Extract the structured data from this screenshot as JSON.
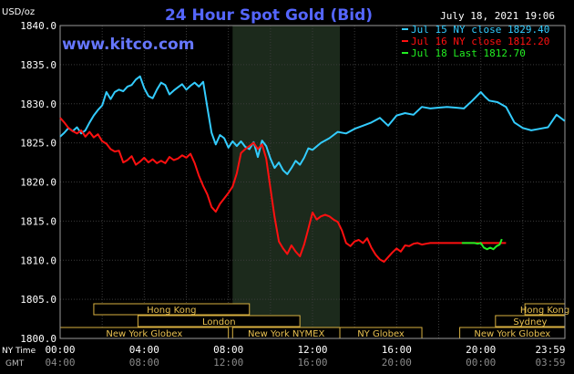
{
  "chart_data": {
    "type": "line",
    "title": "24 Hour Spot Gold (Bid)",
    "unit_label": "USD/oz",
    "website": "www.kitco.com",
    "date_label": "July 18, 2021 19:06",
    "ylim": [
      1800,
      1840
    ],
    "yticks": [
      "1840.0",
      "1835.0",
      "1830.0",
      "1825.0",
      "1820.0",
      "1815.0",
      "1810.0",
      "1805.0",
      "1800.0"
    ],
    "ytick_values": [
      1840,
      1835,
      1830,
      1825,
      1820,
      1815,
      1810,
      1805,
      1800
    ],
    "xlim": [
      0,
      24
    ],
    "ny_time_label": "NY Time",
    "gmt_label": "GMT",
    "xticks_ny": [
      "00:00",
      "04:00",
      "08:00",
      "12:00",
      "16:00",
      "20:00",
      "23:59"
    ],
    "xticks_gmt": [
      "04:00",
      "08:00",
      "12:00",
      "16:00",
      "20:00",
      "00:00",
      "03:59"
    ],
    "xtick_hours": [
      0,
      4,
      8,
      12,
      16,
      20,
      24
    ],
    "shaded_hours": [
      8.2,
      13.3
    ],
    "grid": true,
    "legend_position": "top-right",
    "series": [
      {
        "name": "Jul 15 NY close 1829.40",
        "color": "#33ccff",
        "x": [
          0,
          0.2,
          0.4,
          0.6,
          0.8,
          1.0,
          1.2,
          1.4,
          1.6,
          1.8,
          2.0,
          2.2,
          2.4,
          2.6,
          2.8,
          3.0,
          3.2,
          3.4,
          3.6,
          3.8,
          4.0,
          4.2,
          4.4,
          4.6,
          4.8,
          5.0,
          5.2,
          5.4,
          5.6,
          5.8,
          6.0,
          6.2,
          6.4,
          6.6,
          6.8,
          7.0,
          7.2,
          7.4,
          7.6,
          7.8,
          8.0,
          8.2,
          8.4,
          8.6,
          8.8,
          9.0,
          9.2,
          9.4,
          9.6,
          9.8,
          10.0,
          10.2,
          10.4,
          10.6,
          10.8,
          11.0,
          11.2,
          11.4,
          11.6,
          11.8,
          12.0,
          12.4,
          12.8,
          13.2,
          13.6,
          14.0,
          14.4,
          14.8,
          15.2,
          15.6,
          16.0,
          16.4,
          16.8,
          17.2,
          17.6,
          18.0,
          18.4,
          18.8,
          19.2,
          19.6,
          20.0,
          20.2,
          20.4,
          20.8,
          21.2,
          21.6,
          22.0,
          22.4,
          22.8,
          23.2,
          23.6,
          23.99
        ],
        "values": [
          1825.8,
          1826.3,
          1826.9,
          1826.5,
          1827.0,
          1826.2,
          1826.6,
          1827.6,
          1828.5,
          1829.2,
          1829.8,
          1831.5,
          1830.6,
          1831.5,
          1831.8,
          1831.6,
          1832.2,
          1832.4,
          1833.1,
          1833.5,
          1832.0,
          1831.0,
          1830.7,
          1831.8,
          1832.7,
          1832.4,
          1831.2,
          1831.7,
          1832.1,
          1832.5,
          1831.8,
          1832.3,
          1832.7,
          1832.2,
          1832.8,
          1829.5,
          1826.3,
          1824.8,
          1826.0,
          1825.6,
          1824.4,
          1825.2,
          1824.6,
          1825.2,
          1824.5,
          1824.2,
          1825.1,
          1823.2,
          1825.3,
          1824.6,
          1823.0,
          1821.8,
          1822.5,
          1821.5,
          1821.0,
          1821.8,
          1822.7,
          1822.2,
          1823.1,
          1824.3,
          1824.1,
          1825.0,
          1825.6,
          1826.4,
          1826.2,
          1826.8,
          1827.2,
          1827.6,
          1828.2,
          1827.2,
          1828.5,
          1828.8,
          1828.6,
          1829.6,
          1829.4,
          1829.5,
          1829.6,
          1829.5,
          1829.4,
          1830.4,
          1831.5,
          1830.9,
          1830.4,
          1830.2,
          1829.6,
          1827.6,
          1826.9,
          1826.6,
          1826.8,
          1827.0,
          1828.6,
          1827.8
        ]
      },
      {
        "name": "Jul 16 NY close 1812.20",
        "color": "#ff1010",
        "x": [
          0,
          0.2,
          0.4,
          0.6,
          0.8,
          1.0,
          1.2,
          1.4,
          1.6,
          1.8,
          2.0,
          2.2,
          2.4,
          2.6,
          2.8,
          3.0,
          3.2,
          3.4,
          3.6,
          3.8,
          4.0,
          4.2,
          4.4,
          4.6,
          4.8,
          5.0,
          5.2,
          5.4,
          5.6,
          5.8,
          6.0,
          6.2,
          6.4,
          6.6,
          6.8,
          7.0,
          7.2,
          7.4,
          7.6,
          7.8,
          8.0,
          8.2,
          8.4,
          8.6,
          8.8,
          9.0,
          9.2,
          9.4,
          9.6,
          9.8,
          10.0,
          10.2,
          10.4,
          10.6,
          10.8,
          11.0,
          11.2,
          11.4,
          11.6,
          11.8,
          12.0,
          12.2,
          12.4,
          12.6,
          12.8,
          13.0,
          13.2,
          13.4,
          13.6,
          13.8,
          14.0,
          14.2,
          14.4,
          14.6,
          14.8,
          15.0,
          15.2,
          15.4,
          15.6,
          15.8,
          16.0,
          16.2,
          16.4,
          16.6,
          16.8,
          17.0,
          17.2,
          17.4,
          17.6,
          17.8,
          18.0,
          18.2,
          18.4,
          18.6,
          18.8,
          19.0,
          19.2,
          19.4,
          19.6,
          19.8,
          20.0,
          20.2,
          20.4,
          20.6,
          20.8,
          21.0,
          21.2
        ],
        "values": [
          1828.2,
          1827.6,
          1826.9,
          1826.5,
          1826.2,
          1826.6,
          1825.8,
          1826.4,
          1825.7,
          1826.1,
          1825.2,
          1824.9,
          1824.2,
          1823.9,
          1824.0,
          1822.5,
          1822.8,
          1823.3,
          1822.2,
          1822.6,
          1823.1,
          1822.5,
          1822.9,
          1822.4,
          1822.7,
          1822.4,
          1823.2,
          1822.8,
          1823.0,
          1823.4,
          1823.1,
          1823.6,
          1822.4,
          1820.8,
          1819.5,
          1818.4,
          1816.8,
          1816.2,
          1817.2,
          1817.9,
          1818.6,
          1819.4,
          1821.1,
          1823.7,
          1824.2,
          1824.6,
          1825.0,
          1824.2,
          1824.8,
          1823.0,
          1819.2,
          1815.5,
          1812.4,
          1811.5,
          1810.8,
          1811.9,
          1811.1,
          1810.5,
          1812.0,
          1814.0,
          1816.1,
          1815.2,
          1815.6,
          1815.8,
          1815.6,
          1815.2,
          1814.9,
          1813.8,
          1812.2,
          1811.8,
          1812.4,
          1812.6,
          1812.2,
          1812.8,
          1811.6,
          1810.7,
          1810.1,
          1809.8,
          1810.4,
          1811.0,
          1811.5,
          1811.1,
          1811.9,
          1811.8,
          1812.1,
          1812.2,
          1812.0,
          1812.1,
          1812.2,
          1812.2,
          1812.2,
          1812.2,
          1812.2,
          1812.2,
          1812.2,
          1812.2,
          1812.2,
          1812.2,
          1812.2,
          1812.2,
          1812.2,
          1812.2,
          1812.2,
          1812.2,
          1812.2,
          1812.2,
          1812.2
        ]
      },
      {
        "name": "Jul 18 Last 1812.70",
        "color": "#22ee22",
        "x": [
          19.1,
          19.25,
          19.4,
          19.55,
          19.7,
          19.85,
          20.0,
          20.15,
          20.3,
          20.45,
          20.6,
          20.75,
          20.9,
          21.0
        ],
        "values": [
          1812.2,
          1812.2,
          1812.2,
          1812.2,
          1812.2,
          1812.1,
          1812.2,
          1811.6,
          1811.4,
          1811.6,
          1811.4,
          1811.8,
          1812.0,
          1812.7
        ]
      }
    ],
    "market_bars": [
      {
        "label": "Hong Kong",
        "start": 1.6,
        "end": 9.0,
        "row": 0
      },
      {
        "label": "Hong Kong",
        "start": 22.1,
        "end": 25.0,
        "row": 0
      },
      {
        "label": "London",
        "start": 3.7,
        "end": 11.4,
        "row": 1
      },
      {
        "label": "Sydney",
        "start": 20.7,
        "end": 24.0,
        "row": 1
      },
      {
        "label": "New York Globex",
        "start": 0.0,
        "end": 8.0,
        "row": 2
      },
      {
        "label": "New York NYMEX",
        "start": 8.2,
        "end": 13.3,
        "row": 2
      },
      {
        "label": "NY Globex",
        "start": 13.3,
        "end": 17.2,
        "row": 2
      },
      {
        "label": "New York Globex",
        "start": 19.0,
        "end": 24.0,
        "row": 2
      }
    ]
  }
}
